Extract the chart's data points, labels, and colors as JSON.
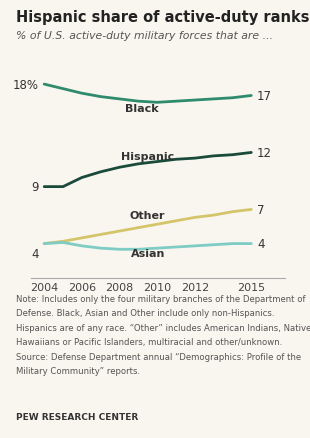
{
  "title": "Hispanic share of active-duty ranks rises",
  "subtitle": "% of U.S. active-duty military forces that are ...",
  "years": [
    2004,
    2005,
    2006,
    2007,
    2008,
    2009,
    2010,
    2011,
    2012,
    2013,
    2014,
    2015
  ],
  "black": [
    18,
    17.6,
    17.2,
    16.9,
    16.7,
    16.5,
    16.4,
    16.5,
    16.6,
    16.7,
    16.8,
    17
  ],
  "hispanic": [
    9,
    9.0,
    9.8,
    10.3,
    10.7,
    11.0,
    11.2,
    11.4,
    11.5,
    11.7,
    11.8,
    12
  ],
  "other": [
    4,
    4.2,
    4.5,
    4.8,
    5.1,
    5.4,
    5.7,
    6.0,
    6.3,
    6.5,
    6.8,
    7
  ],
  "asian": [
    4,
    4.1,
    3.8,
    3.6,
    3.5,
    3.5,
    3.6,
    3.7,
    3.8,
    3.9,
    4.0,
    4
  ],
  "black_color": "#2e8b6e",
  "hispanic_color": "#1a4a3a",
  "other_color": "#d4c56a",
  "asian_color": "#7eccc4",
  "note_line1": "Note: Includes only the four military branches of the Department of",
  "note_line2": "Defense. Black, Asian and Other include only non-Hispanics.",
  "note_line3": "Hispanics are of any race. “Other” includes American Indians, Native",
  "note_line4": "Hawaiians or Pacific Islanders, multiracial and other/unknown.",
  "note_line5": "Source: Defense Department annual “Demographics: Profile of the",
  "note_line6": "Military Community” reports.",
  "source": "PEW RESEARCH CENTER",
  "bg_color": "#f9f6ef",
  "ylim": [
    1,
    22
  ],
  "xtick_labels": [
    "2004",
    "2006",
    "2008",
    "2010",
    "2012",
    "2015"
  ]
}
